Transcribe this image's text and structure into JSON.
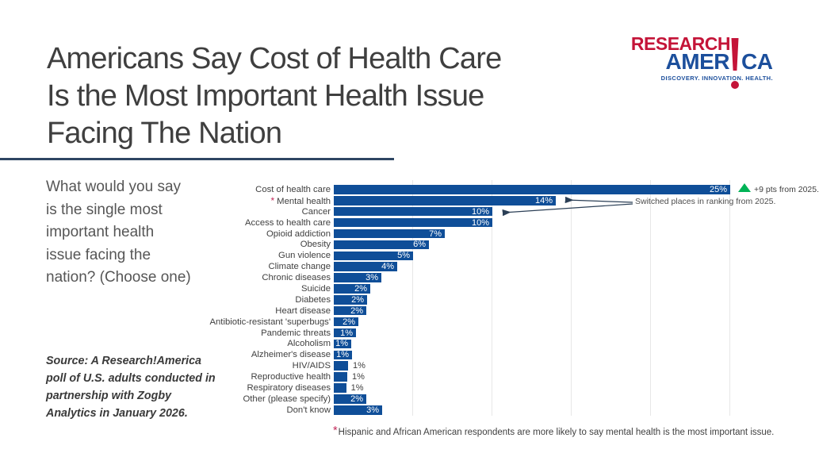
{
  "slide": {
    "title": "Americans Say Cost of Health Care\nIs the Most Important Health Issue\nFacing The Nation",
    "question": "What would you say\nis the single most\nimportant health\nissue facing the\nnation? (Choose one)",
    "source": "Source: A Research!America\npoll of U.S. adults conducted in\npartnership with Zogby\nAnalytics in January 2026.",
    "footnote": {
      "asterisk": "*",
      "text": "Hispanic and African American respondents are more likely to say mental health is the most important issue."
    }
  },
  "logo": {
    "line1": "RESEARCH",
    "line2_left": "AMER",
    "line2_right": "CA",
    "tagline": "DISCOVERY.  INNOVATION.  HEALTH.",
    "colors": {
      "red": "#C41438",
      "blue": "#1C4F9C"
    }
  },
  "annotations": {
    "delta": "+9 pts from 2025.",
    "delta_color": "#00B356",
    "switched": "Switched places in ranking from 2025.",
    "arrow_color": "#2b3f56"
  },
  "chart_data": {
    "type": "bar",
    "orientation": "horizontal",
    "title": "",
    "xlabel": "",
    "ylabel": "",
    "xlim": [
      0,
      25.5
    ],
    "gridlines_pct": [
      5,
      10,
      15,
      20,
      25
    ],
    "grid_on": true,
    "legend": "none",
    "bar_color": "#0F4E98",
    "value_label_color_inside": "#ffffff",
    "value_label_color_outside": "#404040",
    "categories": [
      "Cost of health care",
      "Mental health",
      "Cancer",
      "Access to health care",
      "Opioid addiction",
      "Obesity",
      "Gun violence",
      "Climate change",
      "Chronic diseases",
      "Suicide",
      "Diabetes",
      "Heart disease",
      "Antibiotic-resistant 'superbugs'",
      "Pandemic threats",
      "Alcoholism",
      "Alzheimer's disease",
      "HIV/AIDS",
      "Reproductive health",
      "Respiratory diseases",
      "Other (please specify)",
      "Don't know"
    ],
    "values": [
      25,
      14,
      10,
      10,
      7,
      6,
      5,
      4,
      3,
      2,
      2,
      2,
      2,
      1,
      1,
      1,
      1,
      1,
      1,
      2,
      3
    ],
    "value_labels": [
      "25%",
      "14%",
      "10%",
      "10%",
      "7%",
      "6%",
      "5%",
      "4%",
      "3%",
      "2%",
      "2%",
      "2%",
      "2%",
      "1%",
      "1%",
      "1%",
      "1%",
      "1%",
      "1%",
      "2%",
      "3%"
    ],
    "display_widths_pct": [
      25,
      14,
      10,
      10,
      7,
      6,
      5,
      4,
      3,
      2.3,
      2.1,
      2.05,
      1.55,
      1.4,
      1.1,
      1.15,
      0.9,
      0.85,
      0.78,
      2.05,
      3.05
    ],
    "outside_label_indices": [
      16,
      17,
      18
    ],
    "asterisk_index": 1
  }
}
